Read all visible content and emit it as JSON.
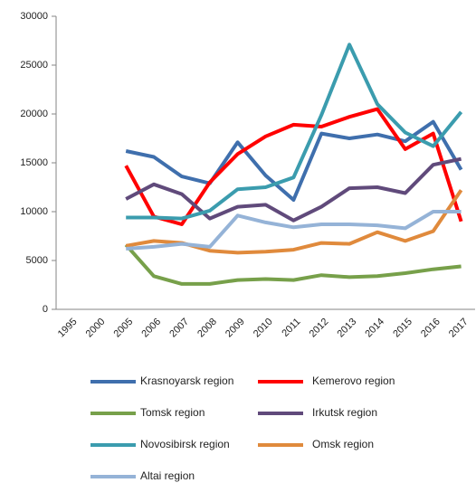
{
  "chart_data": {
    "type": "line",
    "categories": [
      "1995",
      "2000",
      "2005",
      "2006",
      "2007",
      "2008",
      "2009",
      "2010",
      "2011",
      "2012",
      "2013",
      "2014",
      "2015",
      "2016",
      "2017"
    ],
    "series": [
      {
        "name": "Krasnoyarsk region",
        "color": "#3f6fad",
        "values": [
          null,
          null,
          16200,
          15600,
          13600,
          12900,
          17100,
          13700,
          11200,
          18000,
          17500,
          17900,
          17200,
          19200,
          14300
        ]
      },
      {
        "name": "Kemerovo region",
        "color": "#ff0000",
        "values": [
          null,
          null,
          14700,
          9500,
          8700,
          13000,
          15900,
          17700,
          18900,
          18700,
          19700,
          20500,
          16400,
          18000,
          9000
        ]
      },
      {
        "name": "Tomsk region",
        "color": "#77a04a",
        "values": [
          null,
          null,
          6600,
          3400,
          2600,
          2600,
          3000,
          3100,
          3000,
          3500,
          3300,
          3400,
          3700,
          4100,
          4400
        ]
      },
      {
        "name": "Irkutsk region",
        "color": "#604a7b",
        "values": [
          null,
          null,
          11300,
          12800,
          11800,
          9300,
          10500,
          10700,
          9100,
          10500,
          12400,
          12500,
          11900,
          14800,
          15400
        ]
      },
      {
        "name": "Novosibirsk region",
        "color": "#3b9cae",
        "values": [
          null,
          null,
          9400,
          9400,
          9300,
          10100,
          12300,
          12500,
          13500,
          19900,
          27100,
          21000,
          18100,
          16700,
          20200
        ]
      },
      {
        "name": "Omsk region",
        "color": "#e08a3c",
        "values": [
          null,
          null,
          6500,
          7000,
          6800,
          6000,
          5800,
          5900,
          6100,
          6800,
          6700,
          7900,
          7000,
          8000,
          12200
        ]
      },
      {
        "name": "Altai region",
        "color": "#95b3d7",
        "values": [
          null,
          null,
          6200,
          6400,
          6700,
          6400,
          9600,
          8900,
          8400,
          8700,
          8700,
          8600,
          8300,
          10000,
          10000
        ]
      }
    ],
    "ylim": [
      0,
      30000
    ],
    "yticks": [
      0,
      5000,
      10000,
      15000,
      20000,
      25000,
      30000
    ],
    "grid": false
  }
}
